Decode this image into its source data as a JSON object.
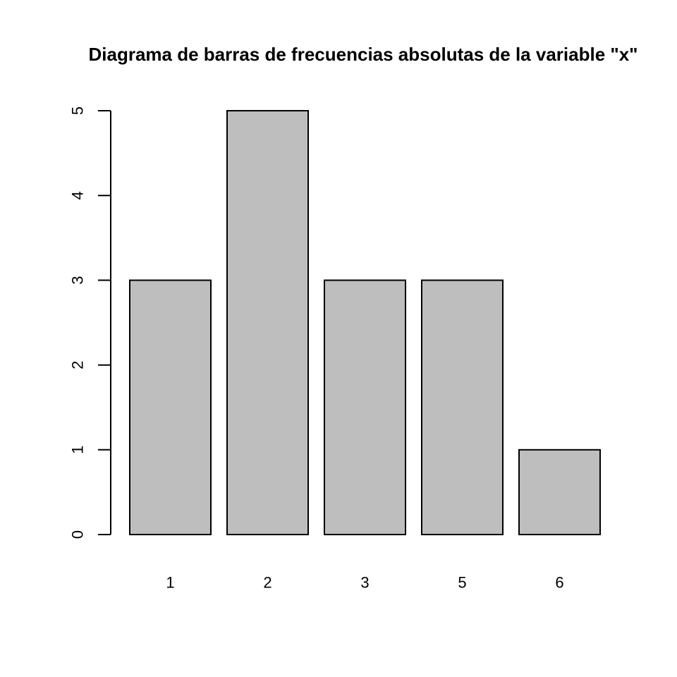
{
  "chart_data": {
    "type": "bar",
    "title": "Diagrama de barras de frecuencias absolutas de la variable \"x\"",
    "categories": [
      "1",
      "2",
      "3",
      "5",
      "6"
    ],
    "values": [
      3,
      5,
      3,
      3,
      1
    ],
    "xlabel": "",
    "ylabel": "",
    "ylim": [
      0,
      5
    ],
    "yticks": [
      0,
      1,
      2,
      3,
      4,
      5
    ],
    "grid": false,
    "bar_color": "#bebebe",
    "bar_border_color": "#000000"
  }
}
